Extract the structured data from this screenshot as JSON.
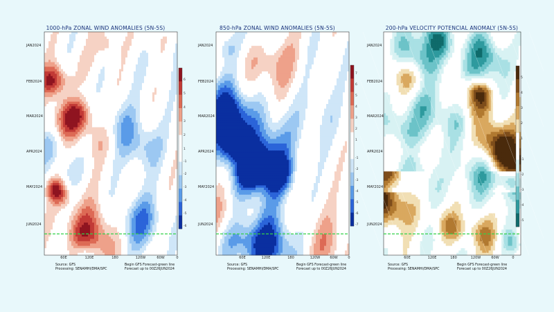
{
  "chart_data": [
    {
      "type": "heatmap",
      "title": "1000-hPa ZONAL WIND ANOMALIES (5N-5S)",
      "y_tick_labels": [
        "JAN2024",
        "FEB2024",
        "MAR2024",
        "APR2024",
        "MAY2024",
        "JUN2024"
      ],
      "x_tick_labels": [
        "60E",
        "120E",
        "180",
        "120W",
        "60W",
        "0"
      ],
      "colorbar_ticks": [
        "6",
        "5",
        "4",
        "3",
        "2",
        "1",
        "-1",
        "-2",
        "-3",
        "-4",
        "-5",
        "-6"
      ],
      "palette": [
        "#0a2fa0",
        "#2b64d9",
        "#5a9be8",
        "#9cc8f2",
        "#cfe6f8",
        "#ffffff",
        "#ffffff",
        "#f6d2c4",
        "#eea18a",
        "#dd6a55",
        "#c23a36",
        "#8f1420"
      ],
      "source": "Source: GFS",
      "processing": "Processing: SENAMHI/DMA/SPC",
      "forecast_note": "Begin GFS Forecast-green line",
      "forecast_range": "Forecast up to 00Z26JUN2024"
    },
    {
      "type": "heatmap",
      "title": "850-hPa ZONAL WIND ANOMALIES (5N-5S)",
      "y_tick_labels": [
        "JAN2024",
        "FEB2024",
        "MAR2024",
        "APR2024",
        "MAY2024",
        "JUN2024"
      ],
      "x_tick_labels": [
        "60E",
        "120E",
        "180",
        "120W",
        "60W",
        "0"
      ],
      "colorbar_ticks": [
        "7",
        "6",
        "5",
        "4",
        "3",
        "2",
        "1",
        "-1",
        "-2",
        "-3",
        "-4",
        "-5",
        "-6",
        "-7"
      ],
      "palette": [
        "#0a2fa0",
        "#2b64d9",
        "#5a9be8",
        "#9cc8f2",
        "#cfe6f8",
        "#ffffff",
        "#ffffff",
        "#f6d2c4",
        "#eea18a",
        "#dd6a55",
        "#c23a36",
        "#8f1420"
      ],
      "source": "Source: GFS",
      "processing": "Processing: SENAMHI/DMA/SPC",
      "forecast_note": "Begin GFS Forecast-green line",
      "forecast_range": "Forecast up to 00Z26JUN2024"
    },
    {
      "type": "heatmap",
      "title": "200-hPa VELOCITY POTENCIAL ANOMALY (5N-5S)",
      "y_tick_labels": [
        "JAN2024",
        "FEB2024",
        "MAR2024",
        "APR2024",
        "MAY2024",
        "JUN2024"
      ],
      "x_tick_labels": [
        "60E",
        "120E",
        "180",
        "120W",
        "60W",
        "0"
      ],
      "colorbar_ticks": [
        "5",
        "4",
        "3",
        "2",
        "1",
        "-1",
        "-2",
        "-3",
        "-4",
        "-5"
      ],
      "palette": [
        "#0f6b6b",
        "#2e9a9e",
        "#6cc3c8",
        "#a9e0e4",
        "#d8f2f3",
        "#ffffff",
        "#ffffff",
        "#f1dfb4",
        "#d9a85f",
        "#b17930",
        "#7e4d1b",
        "#4a2a0c"
      ],
      "source": "Source: GFS",
      "processing": "Processing: SENAMHI/DMA/SPC",
      "forecast_note": "Begin GFS Forecast-green line",
      "forecast_range": "Forecast up to 00Z26JUN2024"
    }
  ]
}
